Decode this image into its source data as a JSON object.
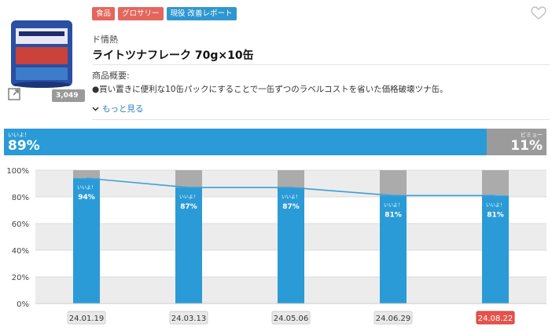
{
  "product": {
    "tags": [
      {
        "label": "食品",
        "color": "#e4665d"
      },
      {
        "label": "グロサリー",
        "color": "#e4665d"
      },
      {
        "label": "現役 改善レポート",
        "color": "#2f97d0"
      }
    ],
    "brand": "ド情熱",
    "title": "ライトツナフレーク 70g×10缶",
    "overview_label": "商品概要:",
    "overview_text": "●買い置きに便利な10缶パックにすることで一缶ずつのラベルコストを省いた価格破壊ツナ缶。",
    "more_link": "もっと見る",
    "votes": "3,049票",
    "icons": {
      "favorite": "heart-outline-icon",
      "expand": "expand-arrow-icon",
      "more": "chevron-down-icon"
    }
  },
  "totals": {
    "good_label": "いいよ！",
    "good_pct": "89%",
    "bad_label": "ビミョー",
    "bad_pct": "11%",
    "good_fraction": 0.89,
    "colors": {
      "good": "#2a9bd6",
      "bad": "#9b9b9b",
      "highlight": "#e9524c"
    }
  },
  "chart_data": {
    "type": "bar",
    "categories": [
      "24.01.19",
      "24.03.13",
      "24.05.06",
      "24.06.29",
      "24.08.22"
    ],
    "values": [
      94,
      87,
      87,
      81,
      81
    ],
    "bar_label": "いいよ！",
    "value_labels": [
      "94%",
      "87%",
      "87%",
      "81%",
      "81%"
    ],
    "ylim": [
      0,
      100
    ],
    "yticks": [
      "0%",
      "20%",
      "40%",
      "60%",
      "80%",
      "100%"
    ],
    "highlight_category": "24.08.22",
    "trend_line": true,
    "grid": true
  }
}
